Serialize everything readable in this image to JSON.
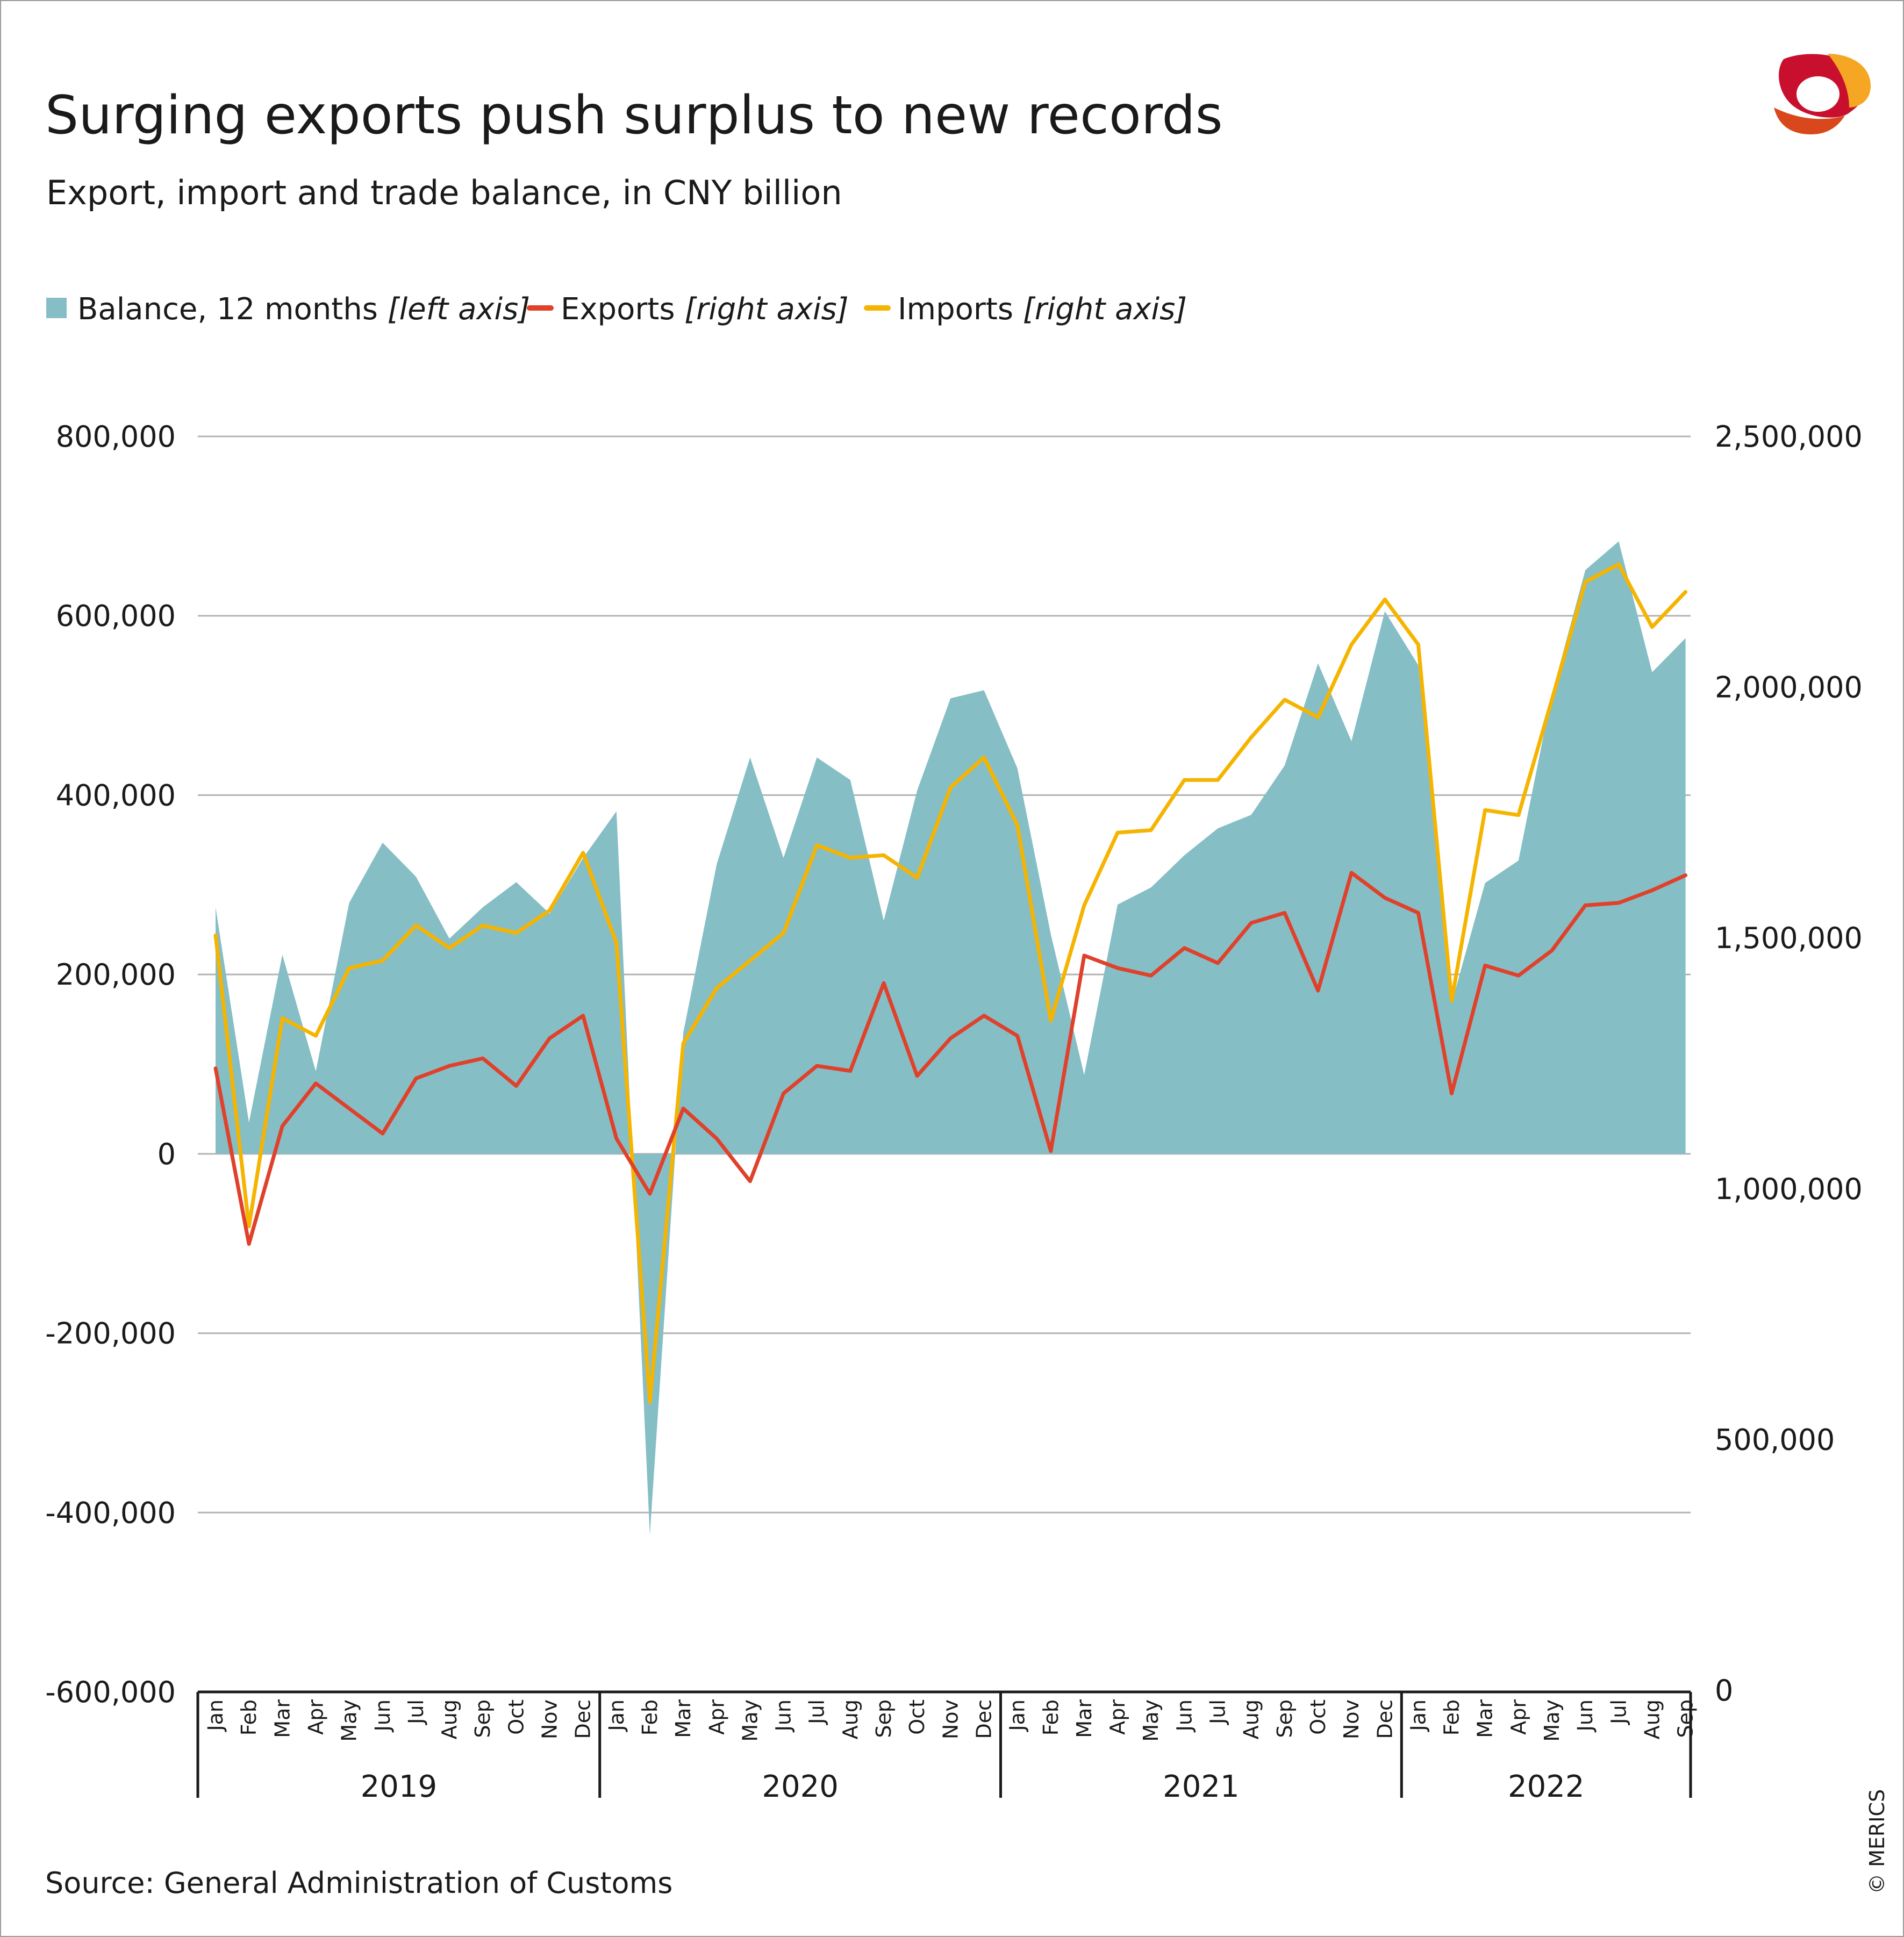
{
  "chart_data": {
    "type": "area+line",
    "title": "Surging exports push surplus to new records",
    "subtitle": "Export, import and trade balance, in CNY billion",
    "source": "Source: General Administration of Customs",
    "copyright": "© MERICS",
    "legend": [
      {
        "key": "balance",
        "label": "Balance, 12 months",
        "note": "[left axis]",
        "color": "#86bec6"
      },
      {
        "key": "exports",
        "label": "Exports",
        "note": "[right axis]",
        "color": "#e0412a"
      },
      {
        "key": "imports",
        "label": "Imports",
        "note": "[right axis]",
        "color": "#f5b400"
      }
    ],
    "left_axis": {
      "ylim": [
        -600000,
        800000
      ],
      "ticks": [
        -600000,
        -400000,
        -200000,
        0,
        200000,
        400000,
        600000,
        800000
      ],
      "tick_labels": [
        "-600,000",
        "-400,000",
        "-200,000",
        "0",
        "200,000",
        "400,000",
        "600,000",
        "800,000"
      ]
    },
    "right_axis": {
      "ylim": [
        0,
        2500000
      ],
      "ticks": [
        0,
        500000,
        1000000,
        1500000,
        2000000,
        2500000
      ],
      "tick_labels": [
        "0",
        "500,000",
        "1,000,000",
        "1,500,000",
        "2,000,000",
        "2,500,000"
      ]
    },
    "years": [
      {
        "label": "2019",
        "months": [
          "Jan",
          "Feb",
          "Mar",
          "Apr",
          "May",
          "Jun",
          "Jul",
          "Aug",
          "Sep",
          "Oct",
          "Nov",
          "Dec"
        ]
      },
      {
        "label": "2020",
        "months": [
          "Jan",
          "Feb",
          "Mar",
          "Apr",
          "May",
          "Jun",
          "Jul",
          "Aug",
          "Sep",
          "Oct",
          "Nov",
          "Dec"
        ]
      },
      {
        "label": "2021",
        "months": [
          "Jan",
          "Feb",
          "Mar",
          "Apr",
          "May",
          "Jun",
          "Jul",
          "Aug",
          "Sep",
          "Oct",
          "Nov",
          "Dec"
        ]
      },
      {
        "label": "2022",
        "months": [
          "Jan",
          "Feb",
          "Mar",
          "Apr",
          "May",
          "Jun",
          "Jul",
          "Aug",
          "Sep"
        ]
      }
    ],
    "series": [
      {
        "name": "balance",
        "axis": "left",
        "values": [
          275000,
          35000,
          222000,
          92000,
          280000,
          347000,
          309000,
          240000,
          275000,
          303000,
          268000,
          330000,
          382000,
          -425000,
          135000,
          323000,
          442000,
          330000,
          442000,
          417000,
          260000,
          405000,
          508000,
          517000,
          430000,
          245000,
          88000,
          278000,
          297000,
          333000,
          363000,
          378000,
          433000,
          547000,
          460000,
          605000,
          545000,
          168000,
          302000,
          327000,
          513000,
          651000,
          683000,
          537000,
          575000
        ]
      },
      {
        "name": "exports",
        "axis": "right",
        "values": [
          1240000,
          890000,
          1125000,
          1210000,
          1160000,
          1110000,
          1220000,
          1245000,
          1260000,
          1205000,
          1300000,
          1345000,
          1100000,
          990000,
          1160000,
          1100000,
          1015000,
          1190000,
          1245000,
          1235000,
          1410000,
          1225000,
          1300000,
          1345000,
          1305000,
          1075000,
          1465000,
          1440000,
          1425000,
          1480000,
          1450000,
          1530000,
          1550000,
          1395000,
          1630000,
          1580000,
          1550000,
          1190000,
          1445000,
          1425000,
          1475000,
          1565000,
          1570000,
          1595000,
          1625000
        ]
      },
      {
        "name": "imports",
        "axis": "right",
        "values": [
          1505000,
          925000,
          1340000,
          1305000,
          1440000,
          1455000,
          1525000,
          1480000,
          1525000,
          1510000,
          1555000,
          1670000,
          1490000,
          575000,
          1290000,
          1400000,
          1455000,
          1510000,
          1685000,
          1660000,
          1665000,
          1620000,
          1800000,
          1860000,
          1725000,
          1335000,
          1565000,
          1710000,
          1715000,
          1815000,
          1815000,
          1900000,
          1975000,
          1940000,
          2085000,
          2175000,
          2085000,
          1375000,
          1755000,
          1745000,
          1975000,
          2210000,
          2245000,
          2120000,
          2190000
        ]
      }
    ]
  },
  "logo": {
    "name": "MERICS"
  }
}
